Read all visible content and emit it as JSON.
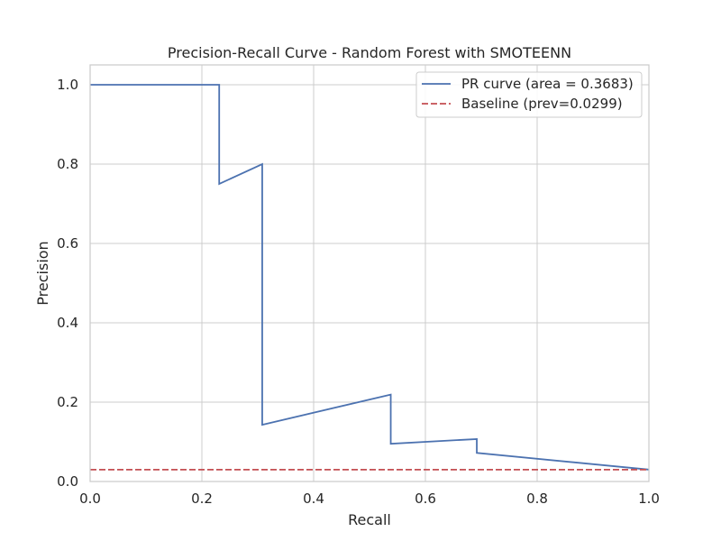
{
  "chart_data": {
    "type": "line",
    "title": "Precision-Recall Curve - Random Forest with SMOTEENN",
    "xlabel": "Recall",
    "ylabel": "Precision",
    "xlim": [
      0.0,
      1.0
    ],
    "ylim": [
      0.0,
      1.05
    ],
    "xticks": [
      "0.0",
      "0.2",
      "0.4",
      "0.6",
      "0.8",
      "1.0"
    ],
    "yticks": [
      "0.0",
      "0.2",
      "0.4",
      "0.6",
      "0.8",
      "1.0"
    ],
    "grid": true,
    "legend_position": "top-right",
    "series": [
      {
        "name": "PR curve (area = 0.3683)",
        "style": "solid",
        "color": "#4c72b0",
        "x": [
          0.0,
          0.231,
          0.231,
          0.308,
          0.308,
          0.538,
          0.538,
          0.692,
          0.692,
          1.0
        ],
        "y": [
          1.0,
          1.0,
          0.75,
          0.8,
          0.143,
          0.219,
          0.095,
          0.107,
          0.072,
          0.03
        ]
      },
      {
        "name": "Baseline (prev=0.0299)",
        "style": "dashed",
        "color": "#c44e52",
        "x": [
          0.0,
          1.0
        ],
        "y": [
          0.0299,
          0.0299
        ]
      }
    ]
  }
}
